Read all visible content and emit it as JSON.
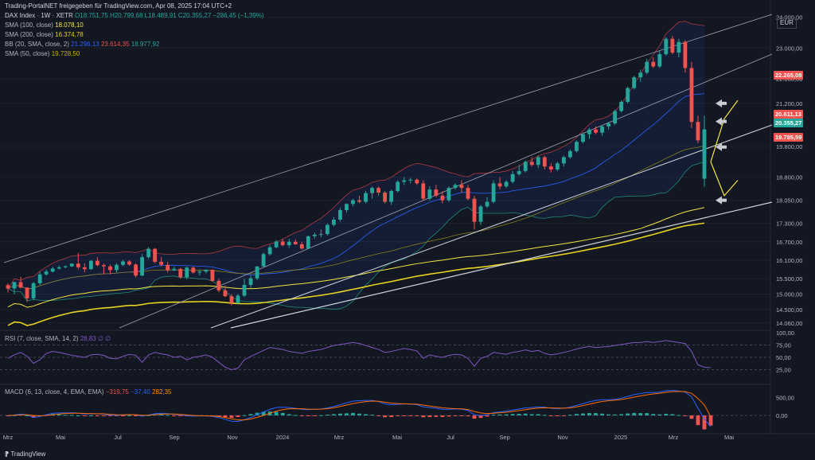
{
  "header": {
    "shared_by": "Trading-PortalNET freigegeben für TradingView.com, Apr 08, 2025 17:04 UTC+2",
    "currency": "EUR"
  },
  "legend": {
    "symbol": "DAX Index · 1W · XETR",
    "ohlc": "O18.751,75  H20.799,68  L18.489,91  C20.355,27  −286,45 (−1,39%)",
    "sma100": "SMA (100, close)",
    "sma100_val": "18.078,10",
    "sma200": "SMA (200, close)",
    "sma200_val": "16.374,78",
    "bb": "BB (20, SMA, close, 2)",
    "bb_val1": "21.296,13",
    "bb_val2": "23.614,35",
    "bb_val3": "18.977,92",
    "sma50": "SMA (50, close)",
    "sma50_val": "19.728,50"
  },
  "rsi_pane": {
    "label": "RSI (7, close, SMA, 14, 2)",
    "value": "28,83  ∅  ∅"
  },
  "macd_pane": {
    "label": "MACD (6, 13, close, 4, EMA, EMA)",
    "v1": "−319,75",
    "v2": "−37,40",
    "v3": "282,35"
  },
  "price_labels": {
    "l1": "22.265,08",
    "l2": "20.611,13",
    "l3": "20.355,27",
    "l4": "19.785,59"
  },
  "footer": {
    "brand": "TradingView"
  },
  "colors": {
    "bg": "#131722",
    "up": "#26a69a",
    "down": "#ef5350",
    "sma100": "#f5e642",
    "sma200": "#e6d21f",
    "sma50": "#c8b400",
    "bb": "#2962ff",
    "rsi": "#7e57c2",
    "macd": "#2962ff",
    "signal": "#ff6d00"
  },
  "chart_data": {
    "type": "candlestick",
    "title": "DAX Index · 1W · XETR",
    "y_ticks": [
      "24.000,00",
      "23.000,00",
      "22.000,00",
      "21.200,00",
      "19.800,00",
      "18.800,00",
      "18.050,00",
      "17.300,00",
      "16.700,00",
      "16.100,00",
      "15.500,00",
      "15.000,00",
      "14.500,00",
      "14.060,00"
    ],
    "x_ticks": [
      "Mrz",
      "Mai",
      "Jul",
      "Sep",
      "Nov",
      "2024",
      "Mrz",
      "Mai",
      "Jul",
      "Sep",
      "Nov",
      "2025",
      "Mrz",
      "Mai"
    ],
    "rsi_ticks": [
      "100,00",
      "75,00",
      "50,00",
      "25,00"
    ],
    "macd_ticks": [
      "500,00",
      "0,00"
    ],
    "ylim": [
      13900,
      24200
    ],
    "candles": [
      [
        15290,
        15350,
        15050,
        15180
      ],
      [
        15180,
        15400,
        14990,
        15390
      ],
      [
        15390,
        15560,
        15190,
        15210
      ],
      [
        15210,
        15220,
        14750,
        14860
      ],
      [
        14860,
        15400,
        14800,
        15350
      ],
      [
        15350,
        15730,
        15300,
        15640
      ],
      [
        15640,
        15800,
        15600,
        15730
      ],
      [
        15730,
        15890,
        15700,
        15830
      ],
      [
        15830,
        15930,
        15800,
        15870
      ],
      [
        15870,
        15940,
        15840,
        15900
      ],
      [
        15900,
        16000,
        15880,
        15990
      ],
      [
        15990,
        16340,
        15800,
        15870
      ],
      [
        15870,
        16000,
        15700,
        15810
      ],
      [
        15810,
        16100,
        15790,
        16080
      ],
      [
        16080,
        16200,
        15900,
        15940
      ],
      [
        15940,
        16000,
        15640,
        15900
      ],
      [
        15900,
        15960,
        15640,
        15780
      ],
      [
        15780,
        16000,
        15700,
        15950
      ],
      [
        15950,
        16110,
        15910,
        16060
      ],
      [
        16060,
        16100,
        15920,
        15960
      ],
      [
        15960,
        16000,
        15540,
        15600
      ],
      [
        15600,
        16300,
        15580,
        16200
      ],
      [
        16200,
        16530,
        16150,
        16470
      ],
      [
        16470,
        16500,
        16000,
        16050
      ],
      [
        16050,
        16200,
        15900,
        15950
      ],
      [
        15950,
        16050,
        15700,
        15770
      ],
      [
        15770,
        15900,
        15750,
        15820
      ],
      [
        15820,
        15850,
        15500,
        15550
      ],
      [
        15550,
        15900,
        15480,
        15860
      ],
      [
        15860,
        15900,
        15670,
        15700
      ],
      [
        15700,
        15800,
        15600,
        15730
      ],
      [
        15730,
        15810,
        15670,
        15790
      ],
      [
        15790,
        15800,
        15400,
        15430
      ],
      [
        15430,
        15500,
        15060,
        15120
      ],
      [
        15120,
        15270,
        14900,
        14930
      ],
      [
        14930,
        15000,
        14630,
        14710
      ],
      [
        14710,
        15000,
        14680,
        14950
      ],
      [
        14950,
        15500,
        14900,
        15300
      ],
      [
        15300,
        15600,
        15200,
        15510
      ],
      [
        15510,
        15900,
        15450,
        15900
      ],
      [
        15900,
        16350,
        15880,
        16300
      ],
      [
        16300,
        16600,
        16250,
        16520
      ],
      [
        16520,
        16760,
        16490,
        16710
      ],
      [
        16710,
        16800,
        16550,
        16590
      ],
      [
        16590,
        16800,
        16500,
        16700
      ],
      [
        16700,
        16780,
        16600,
        16620
      ],
      [
        16620,
        16700,
        16450,
        16480
      ],
      [
        16480,
        16900,
        16460,
        16880
      ],
      [
        16880,
        17000,
        16800,
        16930
      ],
      [
        16930,
        17100,
        16850,
        16950
      ],
      [
        16950,
        17300,
        16900,
        17250
      ],
      [
        17250,
        17500,
        17200,
        17420
      ],
      [
        17420,
        17800,
        17350,
        17730
      ],
      [
        17730,
        17950,
        17650,
        17930
      ],
      [
        17930,
        18100,
        17850,
        18050
      ],
      [
        18050,
        18200,
        17950,
        18000
      ],
      [
        18000,
        18350,
        17950,
        18280
      ],
      [
        18280,
        18500,
        18100,
        18450
      ],
      [
        18450,
        18500,
        18200,
        18300
      ],
      [
        18300,
        18350,
        17950,
        18000
      ],
      [
        18000,
        18400,
        17900,
        18350
      ],
      [
        18350,
        18700,
        18300,
        18650
      ],
      [
        18650,
        18800,
        18550,
        18700
      ],
      [
        18700,
        18780,
        18600,
        18720
      ],
      [
        18720,
        18760,
        18550,
        18600
      ],
      [
        18600,
        18700,
        18050,
        18100
      ],
      [
        18100,
        18500,
        18050,
        18400
      ],
      [
        18400,
        18550,
        18150,
        18200
      ],
      [
        18200,
        18350,
        17950,
        18050
      ],
      [
        18050,
        18500,
        18000,
        18450
      ],
      [
        18450,
        18600,
        18400,
        18550
      ],
      [
        18550,
        18700,
        18300,
        18450
      ],
      [
        18450,
        18550,
        18050,
        18100
      ],
      [
        18100,
        18200,
        17100,
        17350
      ],
      [
        17350,
        17900,
        17250,
        17850
      ],
      [
        17850,
        18150,
        17800,
        18000
      ],
      [
        18000,
        18700,
        17950,
        18600
      ],
      [
        18600,
        18800,
        18400,
        18500
      ],
      [
        18500,
        18700,
        18450,
        18650
      ],
      [
        18650,
        19000,
        18600,
        18900
      ],
      [
        18900,
        19200,
        18850,
        19000
      ],
      [
        19000,
        19350,
        18950,
        19300
      ],
      [
        19300,
        19450,
        19150,
        19200
      ],
      [
        19200,
        19500,
        19100,
        19450
      ],
      [
        19450,
        19500,
        19050,
        19150
      ],
      [
        19150,
        19250,
        18950,
        19050
      ],
      [
        19050,
        19300,
        19000,
        19250
      ],
      [
        19250,
        19500,
        19150,
        19450
      ],
      [
        19450,
        19700,
        19400,
        19650
      ],
      [
        19650,
        20000,
        19600,
        19950
      ],
      [
        19950,
        20250,
        19900,
        20200
      ],
      [
        20200,
        20400,
        20050,
        20350
      ],
      [
        20350,
        20450,
        20200,
        20250
      ],
      [
        20250,
        20500,
        20150,
        20450
      ],
      [
        20450,
        20600,
        20350,
        20550
      ],
      [
        20550,
        21000,
        20500,
        20950
      ],
      [
        20950,
        21300,
        20900,
        21250
      ],
      [
        21250,
        21750,
        21200,
        21700
      ],
      [
        21700,
        22100,
        21650,
        22050
      ],
      [
        22050,
        22300,
        21900,
        22200
      ],
      [
        22200,
        22650,
        22150,
        22550
      ],
      [
        22550,
        22700,
        22350,
        22400
      ],
      [
        22400,
        22900,
        22350,
        22800
      ],
      [
        22800,
        23350,
        22750,
        23300
      ],
      [
        23300,
        23400,
        22800,
        22850
      ],
      [
        22850,
        23300,
        22700,
        23200
      ],
      [
        23200,
        23250,
        22200,
        22350
      ],
      [
        22350,
        22550,
        20400,
        20600
      ],
      [
        20600,
        20800,
        19900,
        20000
      ],
      [
        18751,
        20799,
        18489,
        20355
      ]
    ],
    "rsi": [
      48,
      55,
      60,
      52,
      38,
      45,
      58,
      62,
      60,
      57,
      54,
      52,
      50,
      55,
      56,
      54,
      48,
      47,
      52,
      56,
      54,
      40,
      55,
      60,
      57,
      55,
      50,
      52,
      45,
      50,
      52,
      55,
      50,
      40,
      30,
      25,
      28,
      45,
      52,
      58,
      64,
      70,
      68,
      66,
      62,
      60,
      58,
      62,
      64,
      66,
      70,
      74,
      76,
      78,
      80,
      78,
      74,
      70,
      66,
      60,
      62,
      65,
      68,
      66,
      63,
      48,
      55,
      52,
      50,
      54,
      56,
      55,
      48,
      32,
      48,
      52,
      60,
      58,
      56,
      60,
      62,
      65,
      62,
      64,
      58,
      55,
      57,
      60,
      63,
      67,
      70,
      72,
      70,
      71,
      72,
      74,
      76,
      78,
      80,
      80,
      82,
      80,
      82,
      84,
      82,
      80,
      78,
      62,
      35,
      30,
      29
    ],
    "macd": [
      -20,
      10,
      40,
      20,
      -60,
      -30,
      20,
      60,
      70,
      72,
      74,
      60,
      40,
      50,
      45,
      35,
      10,
      0,
      15,
      25,
      15,
      -20,
      10,
      50,
      60,
      50,
      30,
      20,
      -10,
      -20,
      -15,
      -10,
      -25,
      -60,
      -110,
      -160,
      -170,
      -120,
      -60,
      20,
      100,
      170,
      220,
      230,
      220,
      200,
      170,
      160,
      170,
      180,
      210,
      250,
      300,
      350,
      400,
      410,
      420,
      420,
      390,
      320,
      300,
      310,
      320,
      315,
      300,
      240,
      220,
      200,
      170,
      170,
      180,
      175,
      140,
      20,
      0,
      20,
      80,
      100,
      120,
      150,
      180,
      210,
      220,
      240,
      230,
      200,
      190,
      200,
      230,
      280,
      330,
      380,
      420,
      440,
      440,
      450,
      480,
      530,
      580,
      610,
      640,
      640,
      650,
      690,
      700,
      680,
      650,
      520,
      200,
      -100,
      -319
    ],
    "signal": [
      0,
      5,
      15,
      20,
      0,
      -10,
      0,
      20,
      40,
      55,
      60,
      60,
      55,
      50,
      48,
      45,
      30,
      20,
      18,
      22,
      20,
      5,
      5,
      20,
      35,
      40,
      38,
      30,
      15,
      0,
      -8,
      -10,
      -15,
      -30,
      -60,
      -95,
      -125,
      -125,
      -100,
      -55,
      0,
      60,
      120,
      160,
      185,
      190,
      185,
      175,
      172,
      175,
      190,
      215,
      250,
      290,
      330,
      360,
      385,
      400,
      395,
      370,
      345,
      330,
      325,
      320,
      315,
      290,
      265,
      240,
      215,
      200,
      190,
      185,
      165,
      110,
      70,
      50,
      60,
      75,
      90,
      110,
      135,
      160,
      185,
      205,
      215,
      210,
      205,
      202,
      212,
      238,
      275,
      315,
      355,
      390,
      410,
      425,
      445,
      475,
      510,
      545,
      575,
      600,
      620,
      645,
      665,
      670,
      665,
      615,
      470,
      290,
      -37
    ]
  }
}
